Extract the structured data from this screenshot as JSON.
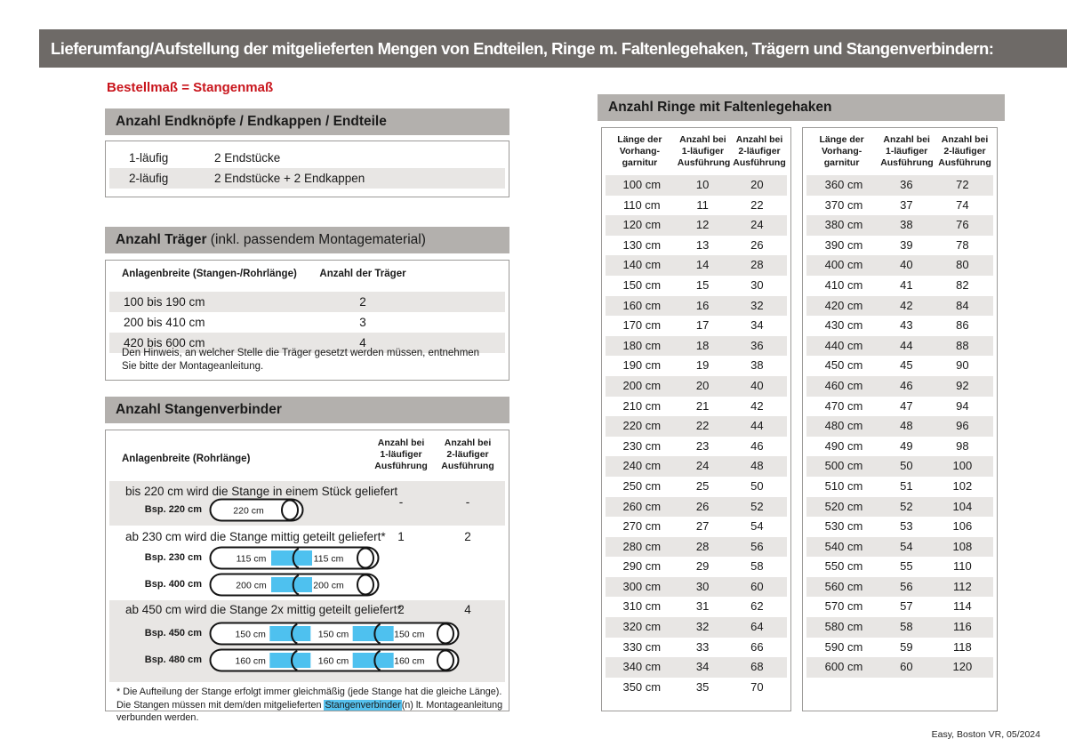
{
  "page": {
    "title_bar": "Lieferumfang/Aufstellung der mitgelieferten Mengen von Endteilen, Ringe m. Faltenlegehaken, Trägern und Stangenverbindern:",
    "subtitle": "Bestellmaß = Stangenmaß",
    "footer": "Easy, Boston VR, 05/2024"
  },
  "colors": {
    "topbar_gray": "#6e6a67",
    "section_bar_gray": "#b3b0ad",
    "row_stripe_gray": "#e8e6e4",
    "accent_red": "#c9161d",
    "connector_blue": "#4ec1ef"
  },
  "end_pieces": {
    "header": "Anzahl Endknöpfe / Endkappen / Endteile",
    "rows": [
      [
        "1-läufig",
        "2 Endstücke"
      ],
      [
        "2-läufig",
        "2 Endstücke + 2 Endkappen"
      ]
    ]
  },
  "traeger": {
    "header_bold": "Anzahl Träger",
    "header_normal": " (inkl. passendem Montagematerial)",
    "col1": "Anlagenbreite (Stangen-/Rohrlänge)",
    "col2": "Anzahl der Träger",
    "rows": [
      [
        "100 bis 190 cm",
        "2"
      ],
      [
        "200 bis 410 cm",
        "3"
      ],
      [
        "420 bis 600 cm",
        "4"
      ]
    ],
    "note": "Den Hinweis, an welcher Stelle die Träger gesetzt werden müssen, entnehmen Sie bitte der Montageanleitung."
  },
  "verbinder": {
    "header": "Anzahl Stangenverbinder",
    "col1": "Anlagenbreite (Rohrlänge)",
    "col2": [
      "Anzahl bei",
      "1-läufiger",
      "Ausführung"
    ],
    "col3": [
      "Anzahl bei",
      "2-läufiger",
      "Ausführung"
    ],
    "rows": [
      {
        "text": "bis 220 cm wird die Stange in einem Stück geliefert",
        "v1": "-",
        "v2": "-",
        "rods": [
          {
            "label": "Bsp. 220 cm",
            "segments": [
              "220 cm"
            ]
          }
        ]
      },
      {
        "text": "ab 230 cm wird die Stange mittig geteilt geliefert*",
        "v1": "1",
        "v2": "2",
        "rods": [
          {
            "label": "Bsp. 230 cm",
            "segments": [
              "115 cm",
              "115 cm"
            ]
          },
          {
            "label": "Bsp. 400 cm",
            "segments": [
              "200 cm",
              "200 cm"
            ]
          }
        ]
      },
      {
        "text": "ab 450 cm wird die Stange 2x mittig geteilt geliefert*",
        "v1": "2",
        "v2": "4",
        "rods": [
          {
            "label": "Bsp. 450 cm",
            "segments": [
              "150 cm",
              "150 cm",
              "150 cm"
            ]
          },
          {
            "label": "Bsp. 480 cm",
            "segments": [
              "160 cm",
              "160 cm",
              "160 cm"
            ]
          }
        ]
      }
    ],
    "footnote_pre": "* Die Aufteilung der Stange erfolgt immer gleichmäßig (jede Stange hat die gleiche Länge). Die Stangen müssen mit dem/den mitgelieferten ",
    "footnote_highlight": "Stangenverbinder",
    "footnote_post": "(n) lt. Montageanleitung verbunden werden."
  },
  "rings": {
    "header": "Anzahl Ringe mit Faltenlegehaken",
    "col_headers": [
      [
        "Länge der",
        "Vorhang-",
        "garnitur"
      ],
      [
        "Anzahl bei",
        "1-läufiger",
        "Ausführung"
      ],
      [
        "Anzahl bei",
        "2-läufiger",
        "Ausführung"
      ]
    ],
    "table1": [
      [
        "100 cm",
        "10",
        "20"
      ],
      [
        "110 cm",
        "11",
        "22"
      ],
      [
        "120 cm",
        "12",
        "24"
      ],
      [
        "130 cm",
        "13",
        "26"
      ],
      [
        "140 cm",
        "14",
        "28"
      ],
      [
        "150 cm",
        "15",
        "30"
      ],
      [
        "160 cm",
        "16",
        "32"
      ],
      [
        "170 cm",
        "17",
        "34"
      ],
      [
        "180 cm",
        "18",
        "36"
      ],
      [
        "190 cm",
        "19",
        "38"
      ],
      [
        "200 cm",
        "20",
        "40"
      ],
      [
        "210 cm",
        "21",
        "42"
      ],
      [
        "220 cm",
        "22",
        "44"
      ],
      [
        "230 cm",
        "23",
        "46"
      ],
      [
        "240 cm",
        "24",
        "48"
      ],
      [
        "250 cm",
        "25",
        "50"
      ],
      [
        "260 cm",
        "26",
        "52"
      ],
      [
        "270 cm",
        "27",
        "54"
      ],
      [
        "280 cm",
        "28",
        "56"
      ],
      [
        "290 cm",
        "29",
        "58"
      ],
      [
        "300 cm",
        "30",
        "60"
      ],
      [
        "310 cm",
        "31",
        "62"
      ],
      [
        "320 cm",
        "32",
        "64"
      ],
      [
        "330 cm",
        "33",
        "66"
      ],
      [
        "340 cm",
        "34",
        "68"
      ],
      [
        "350 cm",
        "35",
        "70"
      ]
    ],
    "table2": [
      [
        "360 cm",
        "36",
        "72"
      ],
      [
        "370 cm",
        "37",
        "74"
      ],
      [
        "380 cm",
        "38",
        "76"
      ],
      [
        "390 cm",
        "39",
        "78"
      ],
      [
        "400 cm",
        "40",
        "80"
      ],
      [
        "410 cm",
        "41",
        "82"
      ],
      [
        "420 cm",
        "42",
        "84"
      ],
      [
        "430 cm",
        "43",
        "86"
      ],
      [
        "440 cm",
        "44",
        "88"
      ],
      [
        "450 cm",
        "45",
        "90"
      ],
      [
        "460 cm",
        "46",
        "92"
      ],
      [
        "470 cm",
        "47",
        "94"
      ],
      [
        "480 cm",
        "48",
        "96"
      ],
      [
        "490 cm",
        "49",
        "98"
      ],
      [
        "500 cm",
        "50",
        "100"
      ],
      [
        "510 cm",
        "51",
        "102"
      ],
      [
        "520 cm",
        "52",
        "104"
      ],
      [
        "530 cm",
        "53",
        "106"
      ],
      [
        "540 cm",
        "54",
        "108"
      ],
      [
        "550 cm",
        "55",
        "110"
      ],
      [
        "560 cm",
        "56",
        "112"
      ],
      [
        "570 cm",
        "57",
        "114"
      ],
      [
        "580 cm",
        "58",
        "116"
      ],
      [
        "590 cm",
        "59",
        "118"
      ],
      [
        "600 cm",
        "60",
        "120"
      ]
    ]
  }
}
